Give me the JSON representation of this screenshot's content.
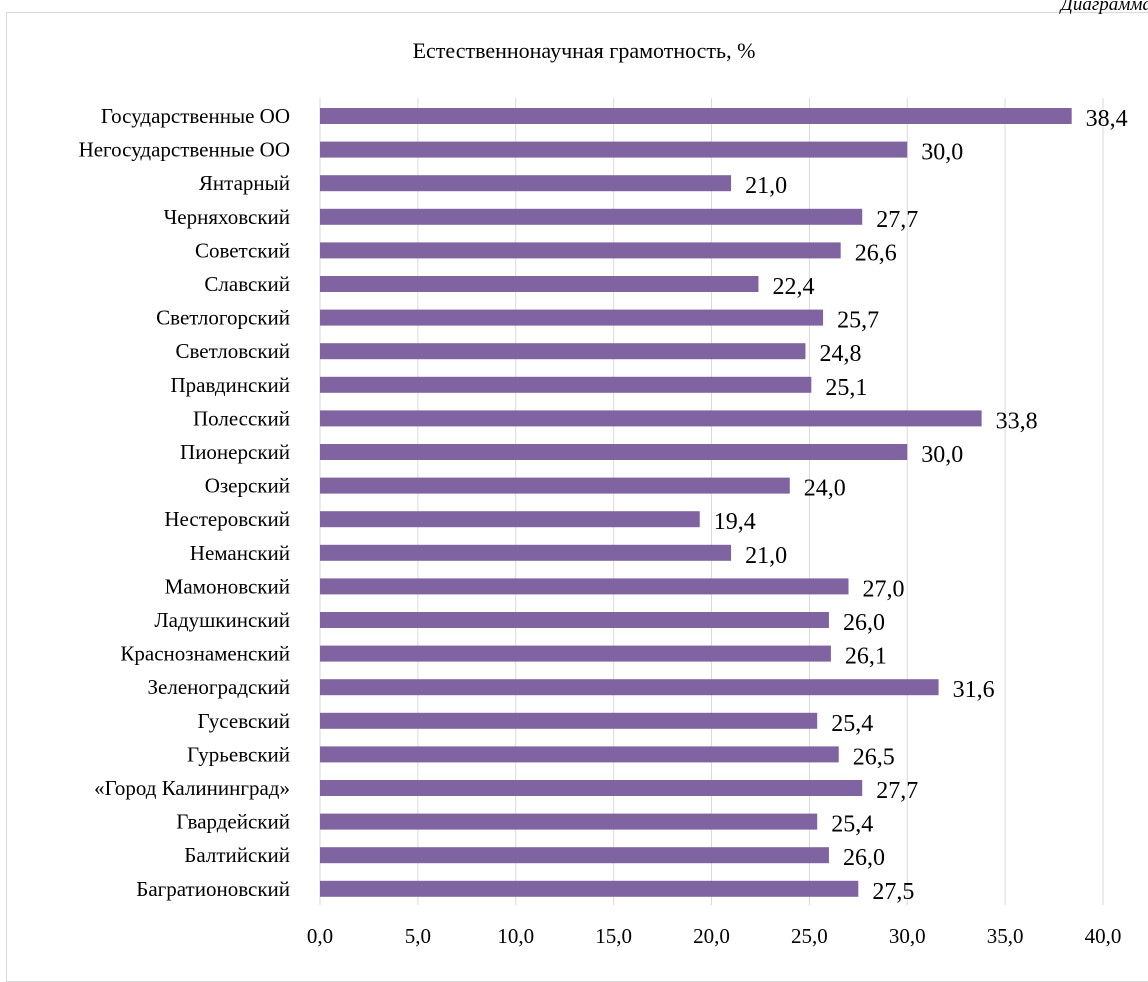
{
  "caption": "Диаграмма",
  "chart_data": {
    "type": "bar",
    "orientation": "horizontal",
    "title": "Естественнонаучная грамотность, %",
    "categories": [
      "Государственные ОО",
      "Негосударственные ОО",
      "Янтарный",
      "Черняховский",
      "Советский",
      "Славский",
      "Светлогорский",
      "Светловский",
      "Правдинский",
      "Полесский",
      "Пионерский",
      "Озерский",
      "Нестеровский",
      "Неманский",
      "Мамоновский",
      "Ладушкинский",
      "Краснознаменский",
      "Зеленоградский",
      "Гусевский",
      "Гурьевский",
      "«Город Калининград»",
      "Гвардейский",
      "Балтийский",
      "Багратионовский"
    ],
    "values": [
      38.4,
      30.0,
      21.0,
      27.7,
      26.6,
      22.4,
      25.7,
      24.8,
      25.1,
      33.8,
      30.0,
      24.0,
      19.4,
      21.0,
      27.0,
      26.0,
      26.1,
      31.6,
      25.4,
      26.5,
      27.7,
      25.4,
      26.0,
      27.5
    ],
    "value_labels": [
      "38,4",
      "30,0",
      "21,0",
      "27,7",
      "26,6",
      "22,4",
      "25,7",
      "24,8",
      "25,1",
      "33,8",
      "30,0",
      "24,0",
      "19,4",
      "21,0",
      "27,0",
      "26,0",
      "26,1",
      "31,6",
      "25,4",
      "26,5",
      "27,7",
      "25,4",
      "26,0",
      "27,5"
    ],
    "xlim": [
      0,
      40
    ],
    "x_ticks": [
      0,
      5,
      10,
      15,
      20,
      25,
      30,
      35,
      40
    ],
    "x_tick_labels": [
      "0,0",
      "5,0",
      "10,0",
      "15,0",
      "20,0",
      "25,0",
      "30,0",
      "35,0",
      "40,0"
    ],
    "grid": "vertical",
    "legend": "none",
    "bar_color": "#8064a2",
    "grid_color": "#d9d9d9"
  }
}
